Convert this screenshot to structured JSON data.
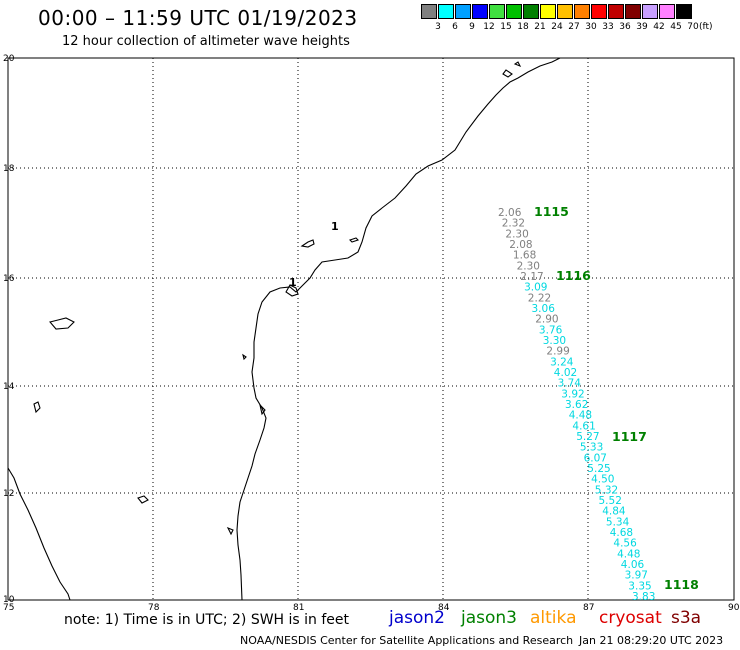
{
  "header": {
    "title": "00:00 – 11:59 UTC 01/19/2023",
    "subtitle": "12 hour collection of altimeter wave heights"
  },
  "legend": {
    "labels": [
      "3",
      "6",
      "9",
      "12",
      "15",
      "18",
      "21",
      "24",
      "27",
      "30",
      "33",
      "36",
      "39",
      "42",
      "45",
      "70"
    ],
    "unit": "(ft)",
    "colors": [
      "#808080",
      "#00ffff",
      "#00a0ff",
      "#0000ff",
      "#40e040",
      "#00c000",
      "#008000",
      "#ffff00",
      "#ffc000",
      "#ff8000",
      "#ff0000",
      "#c00000",
      "#800000",
      "#c8a0ff",
      "#ff80ff",
      "#000000"
    ]
  },
  "map": {
    "lat_ticks": [
      "20",
      "18",
      "16",
      "14",
      "12",
      "10"
    ],
    "lon_ticks": [
      "75",
      "78",
      "81",
      "84",
      "87",
      "90"
    ],
    "coast_marker": "1",
    "readings_gray_color": "#808080",
    "readings_cyan_color": "#00d8e0",
    "pass_label_color": "#008000",
    "readings": [
      {
        "value": "2.06",
        "color": "gray"
      },
      {
        "value": "2.32",
        "color": "gray"
      },
      {
        "value": "2.30",
        "color": "gray"
      },
      {
        "value": "2.08",
        "color": "gray"
      },
      {
        "value": "1.68",
        "color": "gray"
      },
      {
        "value": "2.30",
        "color": "gray"
      },
      {
        "value": "2.17",
        "color": "gray"
      },
      {
        "value": "3.09",
        "color": "cyan"
      },
      {
        "value": "2.22",
        "color": "gray"
      },
      {
        "value": "3.06",
        "color": "cyan"
      },
      {
        "value": "2.90",
        "color": "gray"
      },
      {
        "value": "3.76",
        "color": "cyan"
      },
      {
        "value": "3.30",
        "color": "cyan"
      },
      {
        "value": "2.99",
        "color": "gray"
      },
      {
        "value": "3.24",
        "color": "cyan"
      },
      {
        "value": "4.02",
        "color": "cyan"
      },
      {
        "value": "3.74",
        "color": "cyan"
      },
      {
        "value": "3.92",
        "color": "cyan"
      },
      {
        "value": "3.62",
        "color": "cyan"
      },
      {
        "value": "4.48",
        "color": "cyan"
      },
      {
        "value": "4.61",
        "color": "cyan"
      },
      {
        "value": "5.27",
        "color": "cyan"
      },
      {
        "value": "5.33",
        "color": "cyan"
      },
      {
        "value": "6.07",
        "color": "cyan"
      },
      {
        "value": "5.25",
        "color": "cyan"
      },
      {
        "value": "4.50",
        "color": "cyan"
      },
      {
        "value": "5.32",
        "color": "cyan"
      },
      {
        "value": "5.52",
        "color": "cyan"
      },
      {
        "value": "4.84",
        "color": "cyan"
      },
      {
        "value": "5.34",
        "color": "cyan"
      },
      {
        "value": "4.68",
        "color": "cyan"
      },
      {
        "value": "4.56",
        "color": "cyan"
      },
      {
        "value": "4.48",
        "color": "cyan"
      },
      {
        "value": "4.06",
        "color": "cyan"
      },
      {
        "value": "3.97",
        "color": "cyan"
      },
      {
        "value": "3.35",
        "color": "cyan"
      },
      {
        "value": "3.83",
        "color": "cyan"
      }
    ],
    "time_labels": [
      "1115",
      "1116",
      "1117",
      "1118"
    ]
  },
  "footer": {
    "note": "note: 1) Time is in UTC; 2) SWH is in feet",
    "satellites": [
      {
        "name": "jason2",
        "color": "#0000cc"
      },
      {
        "name": "jason3",
        "color": "#008000"
      },
      {
        "name": "altika",
        "color": "#ff9900"
      },
      {
        "name": "cryosat",
        "color": "#dd0000"
      },
      {
        "name": "s3a",
        "color": "#800000"
      }
    ],
    "credit": "NOAA/NESDIS Center for Satellite Applications and Research",
    "timestamp": "Jan 21 08:29:20 UTC 2023"
  }
}
